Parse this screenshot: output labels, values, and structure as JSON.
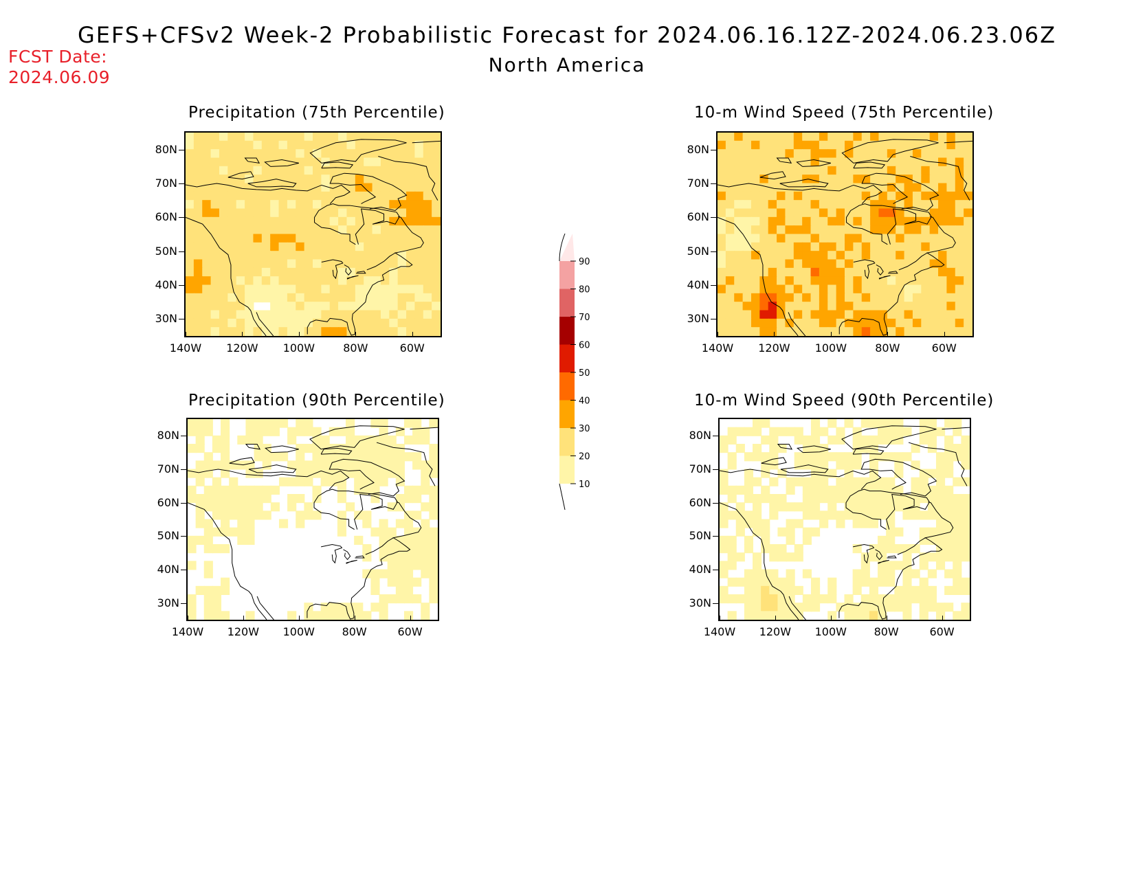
{
  "header": {
    "title": "GEFS+CFSv2 Week-2 Probabilistic Forecast for 2024.06.16.12Z-2024.06.23.06Z",
    "subtitle": "North America",
    "fcst_label": "FCST Date:",
    "fcst_date": "2024.06.09"
  },
  "axes": {
    "lat_labels": [
      "80N",
      "70N",
      "60N",
      "50N",
      "40N",
      "30N"
    ],
    "lon_labels": [
      "140W",
      "120W",
      "100W",
      "80W",
      "60W"
    ],
    "lon_range": [
      -140,
      -50
    ],
    "lat_range": [
      25,
      85
    ]
  },
  "colorbar": {
    "levels": [
      "10",
      "20",
      "30",
      "40",
      "50",
      "60",
      "70",
      "80",
      "90"
    ],
    "colors": [
      "#ffffff",
      "#fff5a8",
      "#ffe27a",
      "#ffa500",
      "#ff6a00",
      "#e01b00",
      "#a50000",
      "#e06464",
      "#f4a2a2",
      "#ffe8e8"
    ]
  },
  "panels": [
    {
      "title": "Precipitation (75th Percentile)",
      "key": "p75"
    },
    {
      "title": "10-m Wind Speed (75th Percentile)",
      "key": "w75"
    },
    {
      "title": "Precipitation (90th Percentile)",
      "key": "p90"
    },
    {
      "title": "10-m Wind Speed (90th Percentile)",
      "key": "w90"
    }
  ]
}
